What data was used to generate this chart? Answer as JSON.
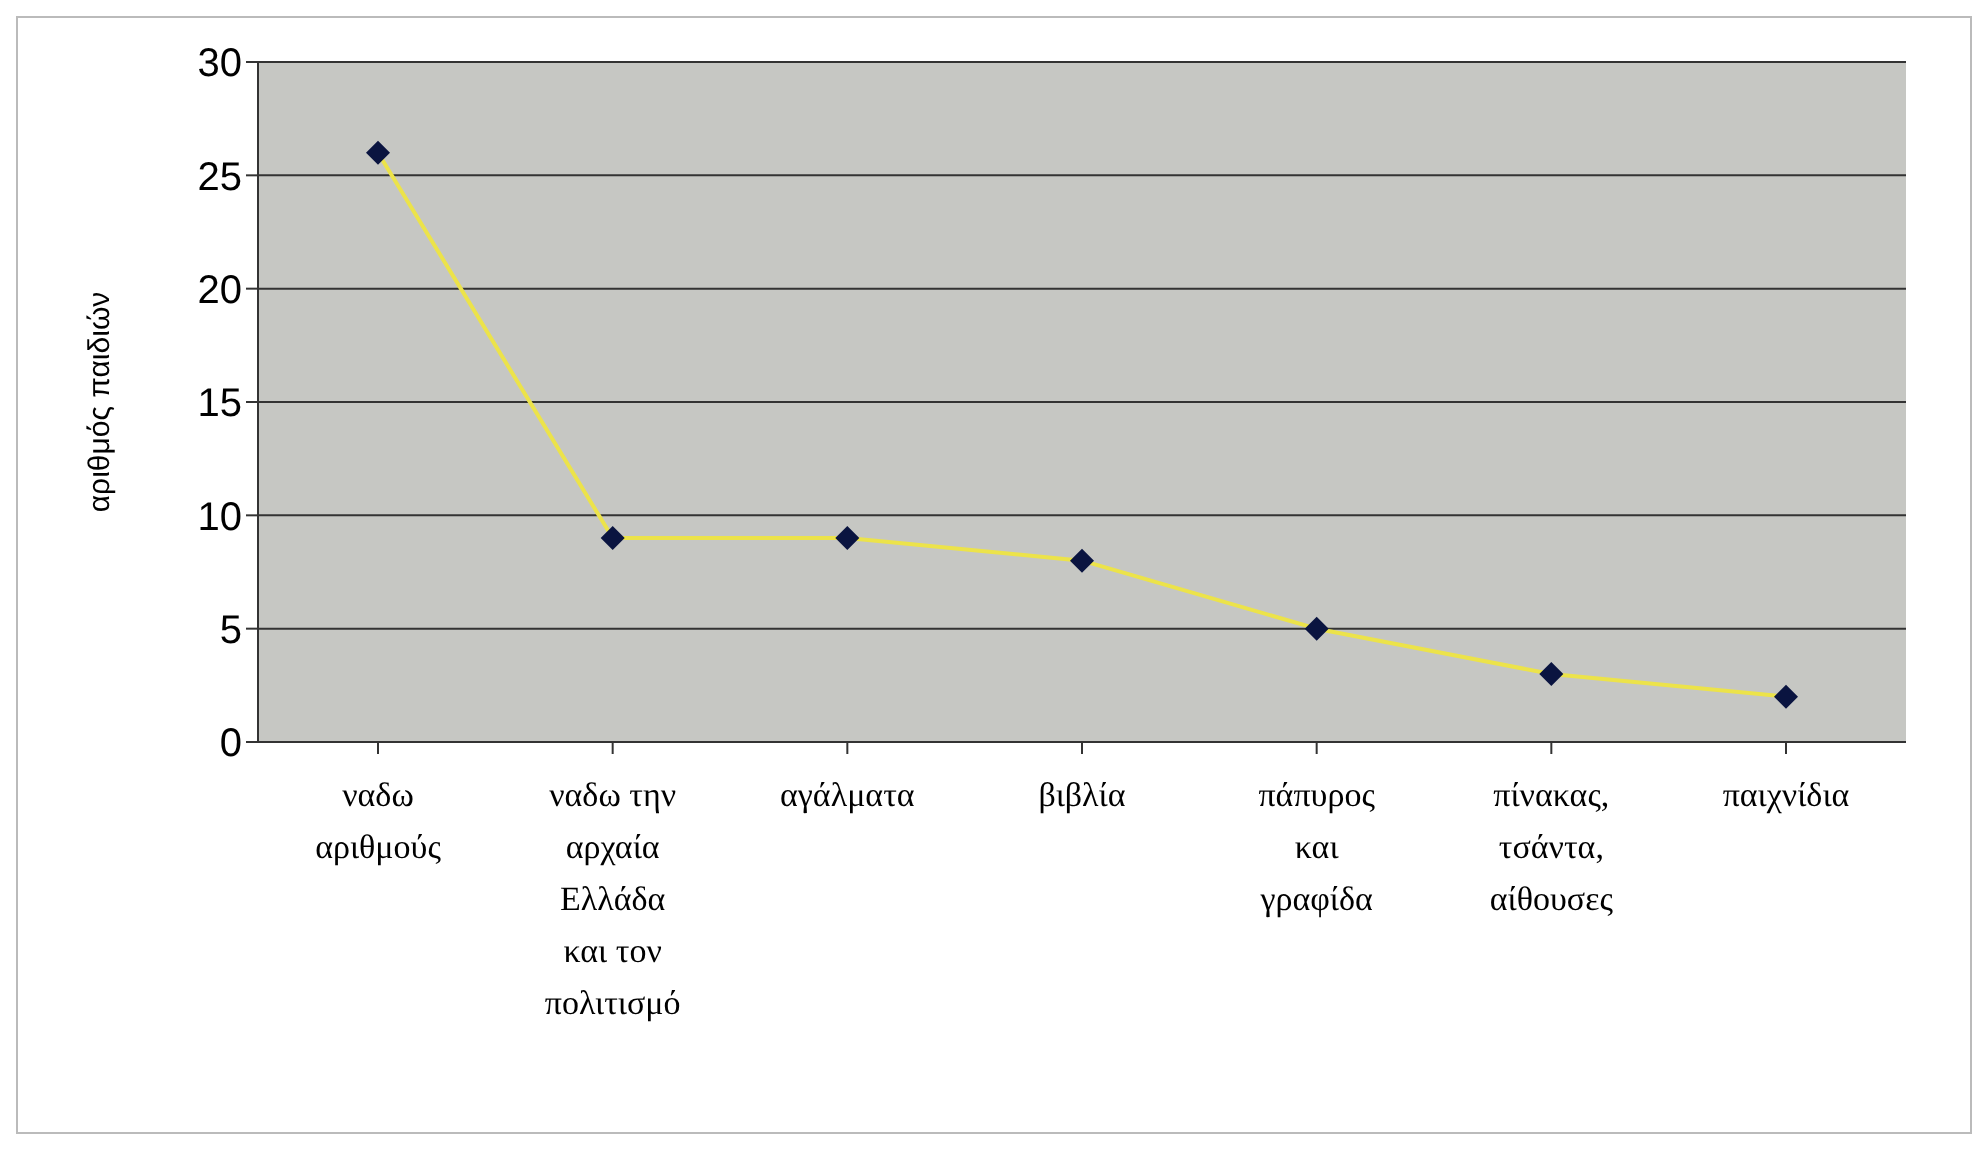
{
  "chart_data": {
    "type": "line",
    "ylabel": "αριθμός παιδιών",
    "categories": [
      "ναδω\nαριθμούς",
      "ναδω την\nαρχαία\nΕλλάδα\nκαι τον\nπολιτισμό",
      "αγάλματα",
      "βιβλία",
      "πάπυρος\nκαι\nγραφίδα",
      "πίνακας,\nτσάντα,\nαίθουσες",
      "παιχνίδια"
    ],
    "series": [
      {
        "color": "#ece34a",
        "values": [
          26,
          9,
          9,
          8,
          5,
          3,
          2
        ]
      }
    ],
    "ylim": [
      0,
      30
    ],
    "yticks": [
      0,
      5,
      10,
      15,
      20,
      25,
      30
    ],
    "grid": "y",
    "marker": "diamond",
    "legend": false
  }
}
